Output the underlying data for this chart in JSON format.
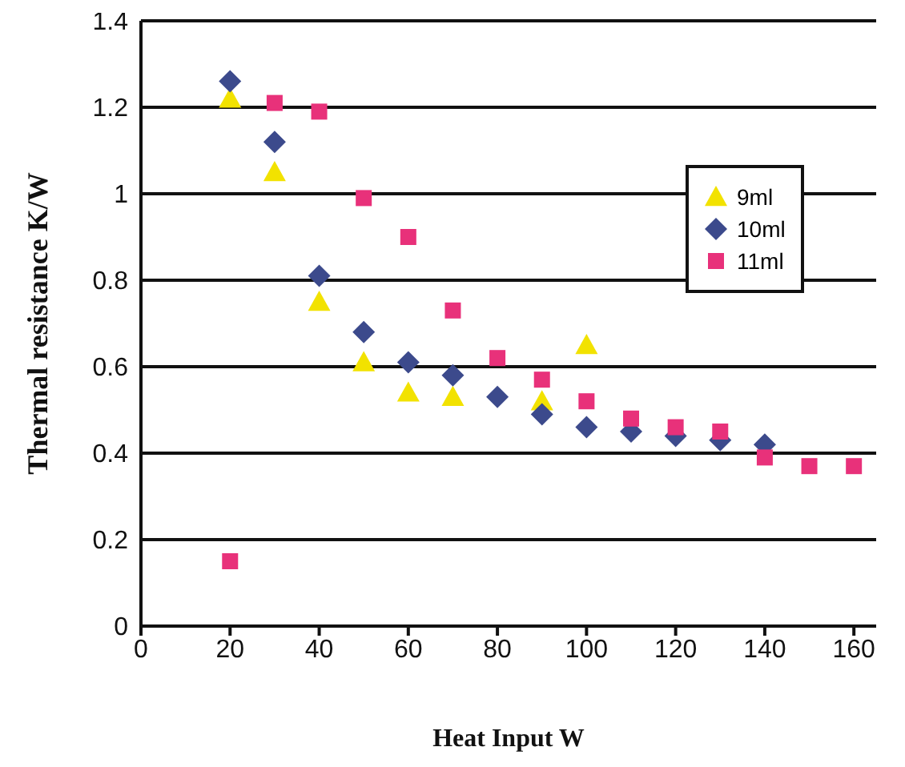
{
  "chart_data": {
    "type": "scatter",
    "xlabel": "Heat Input W",
    "ylabel": "Thermal resistance K/W",
    "x": [
      20,
      30,
      40,
      50,
      60,
      70,
      80,
      90,
      100,
      110,
      120,
      130,
      140,
      150,
      160
    ],
    "series": [
      {
        "name": "9ml",
        "color": "#f2e200",
        "marker": "triangle",
        "values": [
          1.22,
          1.05,
          0.75,
          0.61,
          0.54,
          0.53,
          null,
          0.52,
          0.65,
          null,
          null,
          null,
          null,
          null,
          null
        ]
      },
      {
        "name": "10ml",
        "color": "#3c4a8c",
        "marker": "diamond",
        "values": [
          1.26,
          1.12,
          0.81,
          0.68,
          0.61,
          0.58,
          0.53,
          0.49,
          0.46,
          0.45,
          0.44,
          0.43,
          0.42,
          null,
          null
        ]
      },
      {
        "name": "11ml",
        "color": "#e8317a",
        "marker": "square",
        "values": [
          0.15,
          1.21,
          1.19,
          0.99,
          0.9,
          0.73,
          0.62,
          0.57,
          0.52,
          0.48,
          0.46,
          0.45,
          0.39,
          0.37,
          0.37
        ]
      }
    ],
    "xlim": [
      0,
      165
    ],
    "xticks": [
      0,
      20,
      40,
      60,
      80,
      100,
      120,
      140,
      160
    ],
    "ylim": [
      0,
      1.4
    ],
    "yticks": [
      0,
      0.2,
      0.4,
      0.6,
      0.8,
      1,
      1.2,
      1.4
    ],
    "grid": "y",
    "legend": "top right"
  }
}
